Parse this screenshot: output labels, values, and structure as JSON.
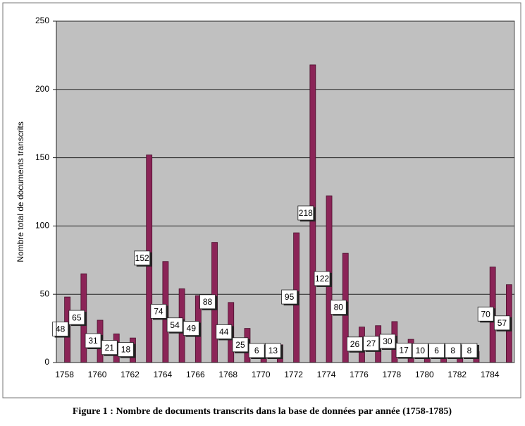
{
  "chart_data": {
    "type": "bar",
    "y_label": "Nombre total de documents transcrits",
    "caption": "Figure 1 : Nombre de documents transcrits dans la base de données par année (1758-1785)",
    "categories": [
      "1758",
      null,
      "1760",
      null,
      "1762",
      null,
      "1764",
      null,
      "1766",
      null,
      "1768",
      null,
      "1770",
      null,
      "1772",
      null,
      "1774",
      null,
      "1776",
      null,
      "1778",
      null,
      "1780",
      null,
      "1782",
      null,
      "1784",
      null
    ],
    "values": [
      48,
      65,
      31,
      21,
      18,
      152,
      74,
      54,
      49,
      88,
      44,
      25,
      6,
      13,
      95,
      218,
      122,
      80,
      26,
      27,
      30,
      17,
      10,
      6,
      8,
      8,
      70,
      57
    ],
    "color": "#8b2457",
    "ylim": [
      0,
      250
    ],
    "yticks": [
      0,
      50,
      100,
      150,
      200,
      250
    ],
    "grid": true
  }
}
